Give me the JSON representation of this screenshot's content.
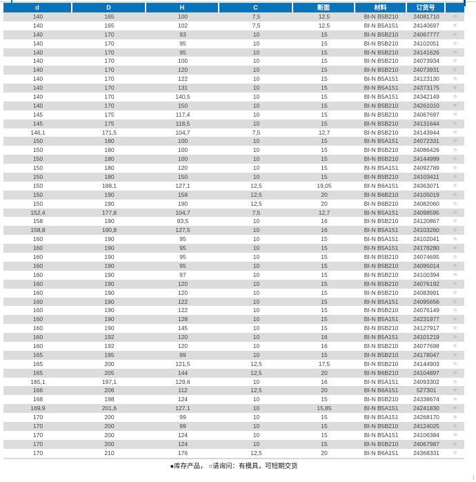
{
  "colors": {
    "header_bg": "#0a73ba",
    "row_alt": "#dcdcdc"
  },
  "page": {
    "legend": "●库存产品， ○请询问：有模具，可短期交货"
  },
  "table": {
    "columns": [
      "d",
      "D",
      "H",
      "C",
      "断面",
      "材料",
      "订货号",
      ""
    ],
    "status_icon": "ring-circle",
    "rows": [
      [
        "140",
        "165",
        "100",
        "7,5",
        "12,5",
        "BI-N B5B210",
        "24081710",
        "○"
      ],
      [
        "140",
        "165",
        "102",
        "7,5",
        "12,5",
        "BI-N B5A151",
        "24140697",
        "○"
      ],
      [
        "140",
        "170",
        "93",
        "10",
        "15",
        "BI-N B5B210",
        "24067777",
        "○"
      ],
      [
        "140",
        "170",
        "95",
        "10",
        "15",
        "BI-N B5B210",
        "24102051",
        "○"
      ],
      [
        "140",
        "170",
        "95",
        "10",
        "15",
        "BI-N B5B210",
        "24141626",
        "○"
      ],
      [
        "140",
        "170",
        "100",
        "10",
        "15",
        "BI-N B5B210",
        "24073934",
        "○"
      ],
      [
        "140",
        "170",
        "120",
        "10",
        "15",
        "BI-N B5B210",
        "24073931",
        "○"
      ],
      [
        "140",
        "170",
        "122",
        "10",
        "15",
        "BI-N B5A151",
        "24123130",
        "○"
      ],
      [
        "140",
        "170",
        "131",
        "10",
        "15",
        "BI-N B5A151",
        "24373175",
        "○"
      ],
      [
        "140",
        "170",
        "140,5",
        "10",
        "15",
        "BI-N B5A151",
        "24342149",
        "○"
      ],
      [
        "140",
        "170",
        "150",
        "10",
        "15",
        "BI-N B5B210",
        "24261010",
        "○"
      ],
      [
        "145",
        "175",
        "117,4",
        "10",
        "15",
        "BI-N B5B210",
        "24067697",
        "○"
      ],
      [
        "145",
        "175",
        "118,5",
        "10",
        "15",
        "BI-N B5B210",
        "24131644",
        "○"
      ],
      [
        "146,1",
        "171,5",
        "104,7",
        "7,5",
        "12,7",
        "BI-N B5B210",
        "24143944",
        "○"
      ],
      [
        "150",
        "180",
        "100",
        "10",
        "15",
        "BI-N B5A151",
        "24072331",
        "○"
      ],
      [
        "150",
        "180",
        "100",
        "10",
        "15",
        "BI-N B5B210",
        "24086426",
        "○"
      ],
      [
        "150",
        "180",
        "100",
        "10",
        "15",
        "BI-N B5B210",
        "24144999",
        "○"
      ],
      [
        "150",
        "180",
        "120",
        "10",
        "15",
        "BI-N B5A151",
        "24092789",
        "○"
      ],
      [
        "150",
        "180",
        "150",
        "10",
        "15",
        "BI-N B5B210",
        "24103411",
        "○"
      ],
      [
        "150",
        "188,1",
        "127,1",
        "12,5",
        "19,05",
        "BI-N B6A151",
        "24363071",
        "○"
      ],
      [
        "150",
        "190",
        "158",
        "12,5",
        "20",
        "BI-N B6B210",
        "24105019",
        "○"
      ],
      [
        "150",
        "190",
        "190",
        "12,5",
        "20",
        "BI-N B6B210",
        "24082060",
        "○"
      ],
      [
        "152,4",
        "177,8",
        "104,7",
        "7,5",
        "12,7",
        "BI-N B5A151",
        "24098595",
        "○"
      ],
      [
        "158",
        "190",
        "93,5",
        "10",
        "16",
        "BI-N B5B210",
        "24120867",
        "○"
      ],
      [
        "158,8",
        "190,8",
        "127,5",
        "10",
        "16",
        "BI-N B5A151",
        "24103260",
        "○"
      ],
      [
        "160",
        "190",
        "95",
        "10",
        "15",
        "BI-N B5A151",
        "24102041",
        "○"
      ],
      [
        "160",
        "190",
        "95",
        "10",
        "15",
        "BI-N B5A151",
        "24178280",
        "○"
      ],
      [
        "160",
        "190",
        "95",
        "10",
        "15",
        "BI-N B5B210",
        "24074695",
        "○"
      ],
      [
        "160",
        "190",
        "95",
        "10",
        "15",
        "BI-N B5B210",
        "24095014",
        "○"
      ],
      [
        "160",
        "190",
        "97",
        "10",
        "15",
        "BI-N B5B210",
        "24100394",
        "○"
      ],
      [
        "160",
        "190",
        "120",
        "10",
        "15",
        "BI-N B5B210",
        "24076192",
        "○"
      ],
      [
        "160",
        "190",
        "120",
        "10",
        "15",
        "BI-N B5B210",
        "24083991",
        "○"
      ],
      [
        "160",
        "190",
        "122",
        "10",
        "15",
        "BI-N B5A151",
        "24095656",
        "○"
      ],
      [
        "160",
        "190",
        "122",
        "10",
        "15",
        "BI-N B5B210",
        "24076149",
        "○"
      ],
      [
        "160",
        "190",
        "128",
        "10",
        "15",
        "BI-N B5A151",
        "24231977",
        "○"
      ],
      [
        "160",
        "190",
        "145",
        "10",
        "15",
        "BI-N B5B210",
        "24127917",
        "○"
      ],
      [
        "160",
        "192",
        "120",
        "10",
        "16",
        "BI-N B5A151",
        "24101219",
        "○"
      ],
      [
        "160",
        "192",
        "120",
        "10",
        "16",
        "BI-N B5B210",
        "24077698",
        "○"
      ],
      [
        "165",
        "195",
        "99",
        "10",
        "15",
        "BI-N B5B210",
        "24178047",
        "○"
      ],
      [
        "165",
        "200",
        "121,5",
        "12,5",
        "17,5",
        "BI-N B5B210",
        "24144903",
        "○"
      ],
      [
        "165",
        "205",
        "144",
        "12,5",
        "20",
        "BI-N B6B210",
        "24104897",
        "○"
      ],
      [
        "165,1",
        "197,1",
        "129,6",
        "10",
        "16",
        "BI-N B5A151",
        "24093302",
        "○"
      ],
      [
        "166",
        "206",
        "112",
        "12,5",
        "20",
        "BI-N B6A151",
        "527301",
        "○"
      ],
      [
        "168",
        "198",
        "124",
        "10",
        "15",
        "BI-N B5B210",
        "24338674",
        "○"
      ],
      [
        "169,9",
        "201,6",
        "127,1",
        "10",
        "15,85",
        "BI-N B5A151",
        "24241830",
        "○"
      ],
      [
        "170",
        "200",
        "99",
        "10",
        "15",
        "BI-N B5A151",
        "24268170",
        "○"
      ],
      [
        "170",
        "200",
        "99",
        "10",
        "15",
        "BI-N B5B210",
        "24124025",
        "○"
      ],
      [
        "170",
        "200",
        "124",
        "10",
        "15",
        "BI-N B5A151",
        "24106384",
        "○"
      ],
      [
        "170",
        "200",
        "124",
        "10",
        "15",
        "BI-N B5B210",
        "24067987",
        "○"
      ],
      [
        "170",
        "210",
        "176",
        "12,5",
        "20",
        "BI-N B6A151",
        "24368331",
        "○"
      ]
    ]
  }
}
